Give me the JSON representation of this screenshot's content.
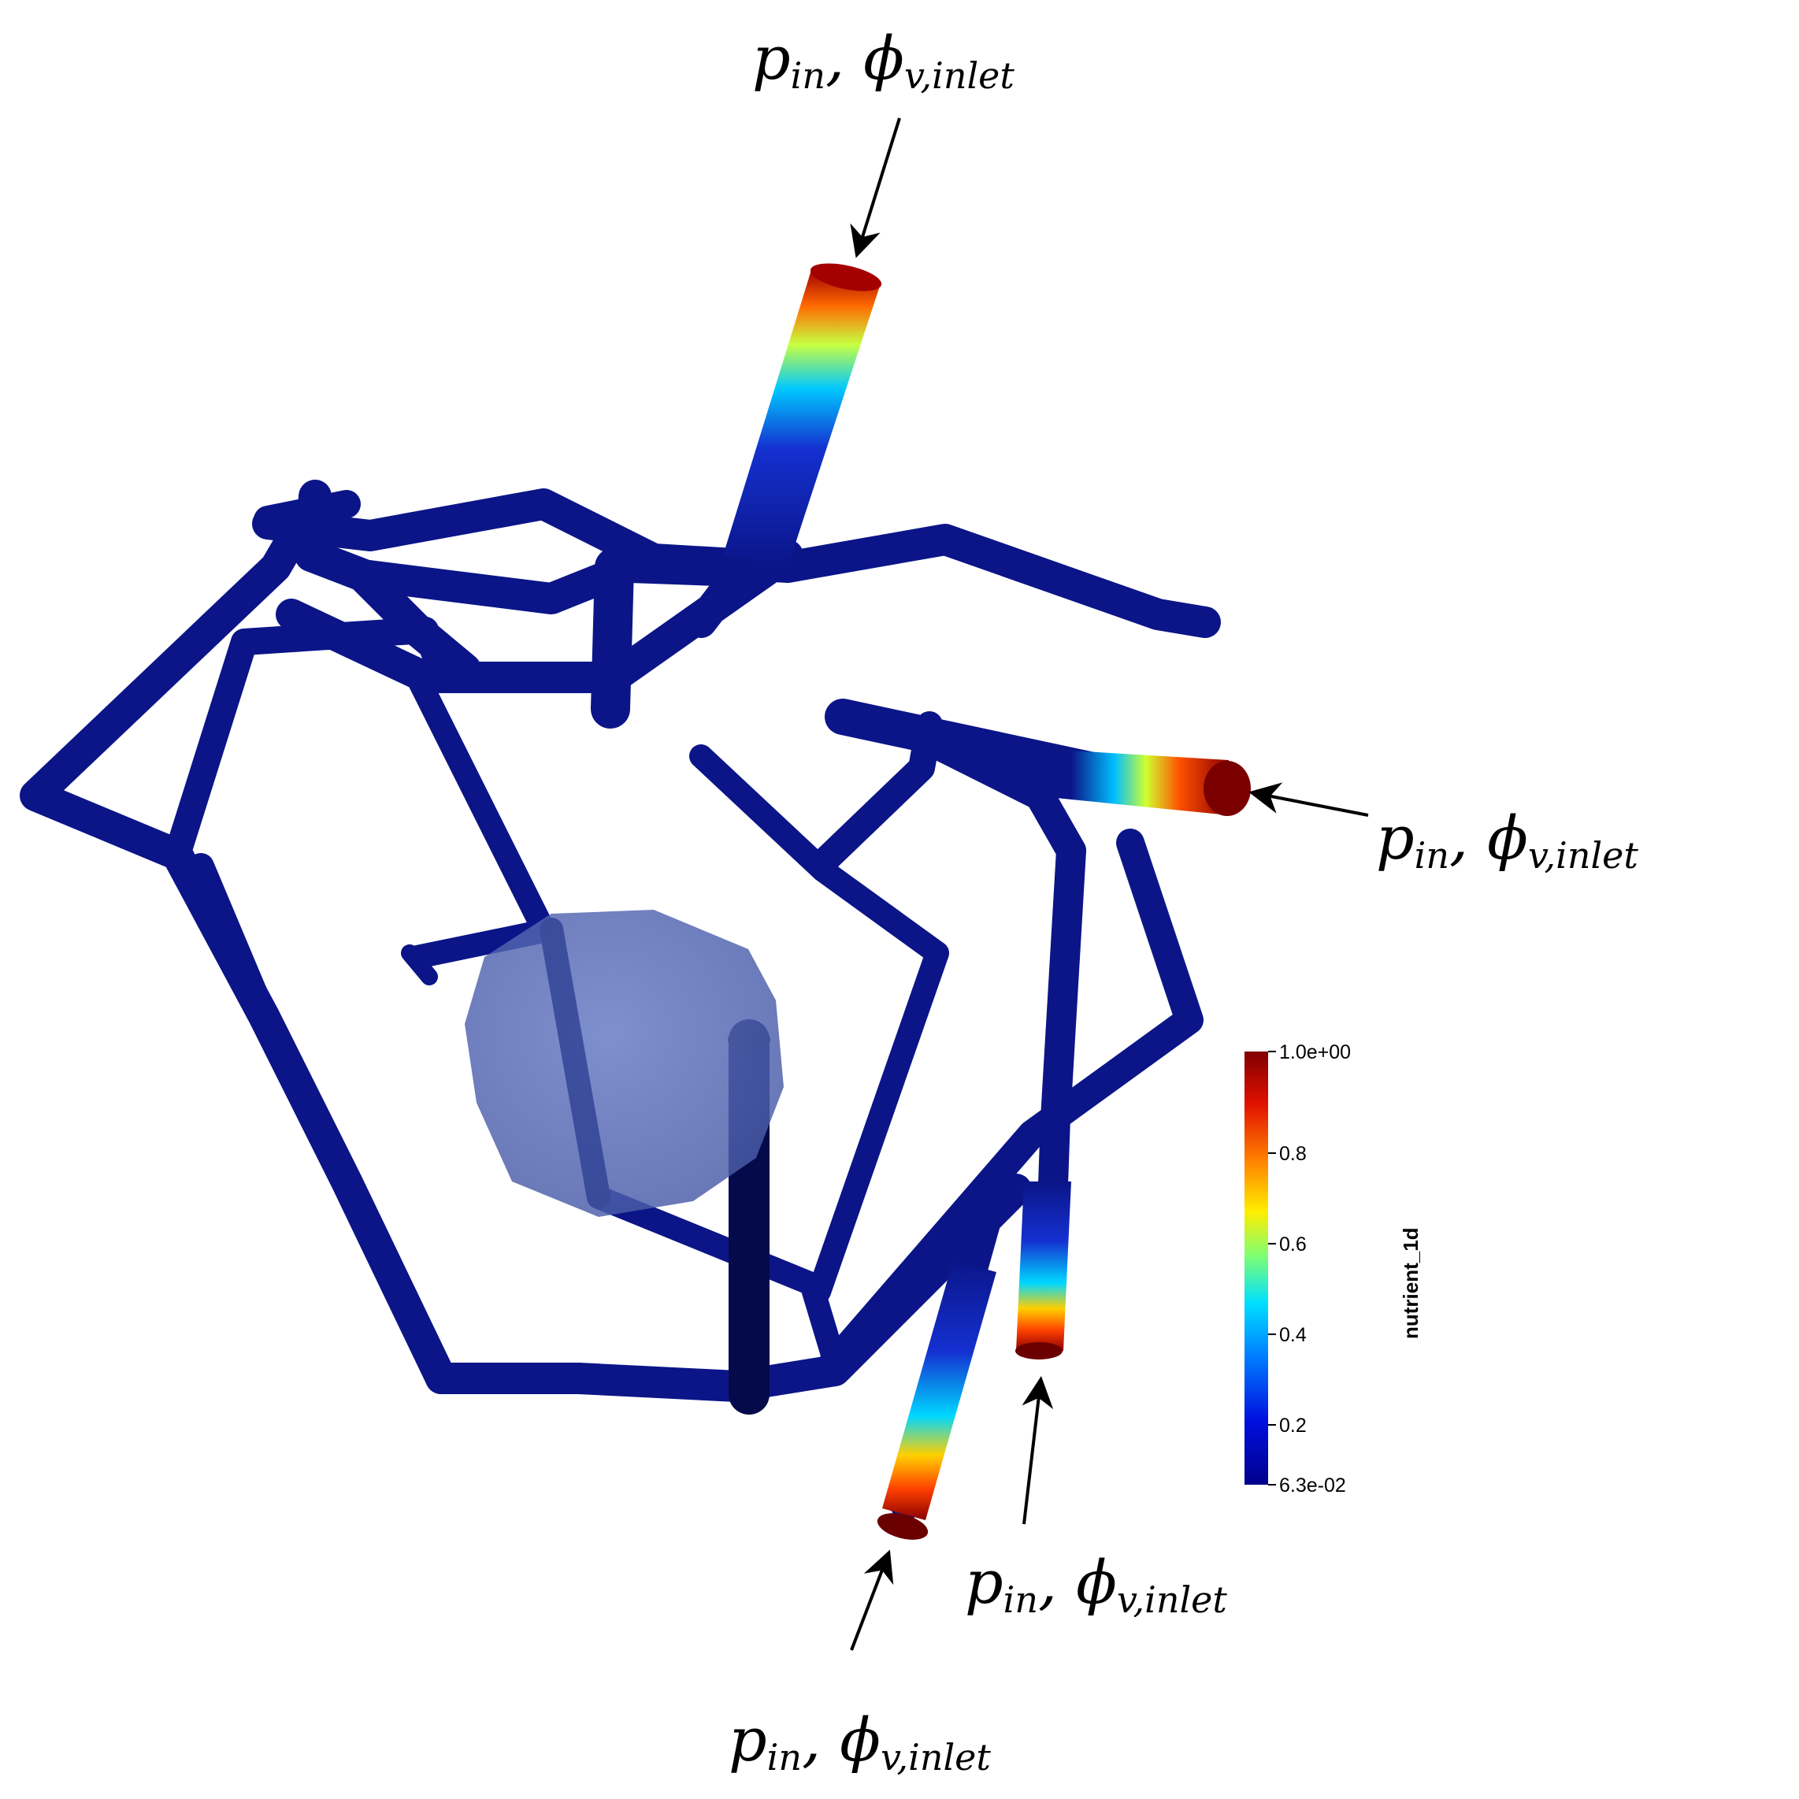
{
  "annotations": [
    {
      "id": "top",
      "p": "p",
      "p_sub": "in",
      "sep": ",",
      "phi": "ϕ",
      "phi_sub": "v,inlet"
    },
    {
      "id": "right",
      "p": "p",
      "p_sub": "in",
      "sep": ",",
      "phi": "ϕ",
      "phi_sub": "v,inlet"
    },
    {
      "id": "bottom-right",
      "p": "p",
      "p_sub": "in",
      "sep": ",",
      "phi": "ϕ",
      "phi_sub": "v,inlet"
    },
    {
      "id": "bottom-left",
      "p": "p",
      "p_sub": "in",
      "sep": ",",
      "phi": "ϕ",
      "phi_sub": "v,inlet"
    }
  ],
  "colorbar": {
    "title": "nutrient_1d",
    "max_label": "1.0e+00",
    "min_label": "6.3e-02",
    "ticks": [
      "0.8",
      "0.6",
      "0.4",
      "0.2"
    ],
    "colormap": [
      "#800000",
      "#e01000",
      "#ff8000",
      "#ffee00",
      "#80ff70",
      "#00e0ff",
      "#0080ff",
      "#0010e0",
      "#00008c"
    ]
  },
  "colors": {
    "vessel": "#0b1588",
    "vessel_dark": "#050a4a",
    "tumor": "#5a6fb8",
    "inlet_hot": "#8b0000"
  }
}
